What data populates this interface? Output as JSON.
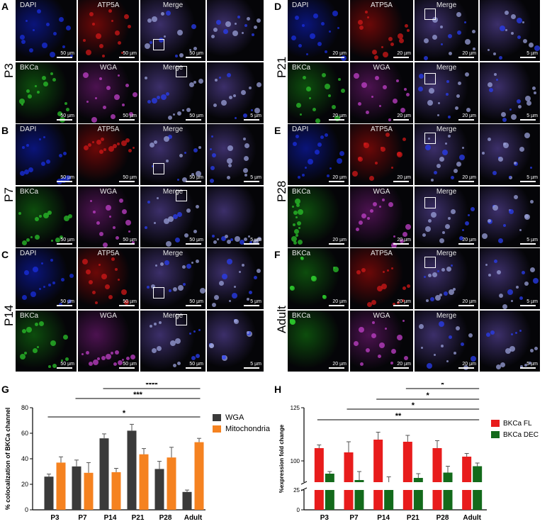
{
  "micro": {
    "channels_top": [
      "DAPI",
      "ATP5A",
      "Merge"
    ],
    "channels_top_adult": [
      "BKCa",
      "ATP5A",
      "Merge"
    ],
    "channels_bottom": [
      "BKCa",
      "WGA",
      "Merge"
    ],
    "scale_50": "50 µm",
    "scale_20": "20 µm",
    "scale_5": "5 µm",
    "panels_left": [
      {
        "letter": "A",
        "stage": "P3"
      },
      {
        "letter": "B",
        "stage": "P7"
      },
      {
        "letter": "C",
        "stage": "P14"
      }
    ],
    "panels_right": [
      {
        "letter": "D",
        "stage": "P21"
      },
      {
        "letter": "E",
        "stage": "P28"
      },
      {
        "letter": "F",
        "stage": "Adult"
      }
    ]
  },
  "chart_data": [
    {
      "type": "bar",
      "panel": "G",
      "categories": [
        "P3",
        "P7",
        "P14",
        "P21",
        "P28",
        "Adult"
      ],
      "ylabel": "% colocalization of BKCa channel",
      "ylim": [
        0,
        80
      ],
      "yticks": [
        "0",
        "20",
        "40",
        "60",
        "80"
      ],
      "series": [
        {
          "name": "WGA",
          "color": "#3a3a3a",
          "values": [
            26,
            34,
            56,
            62,
            32,
            14
          ],
          "errors": [
            2,
            5,
            3.5,
            5,
            6,
            1.5
          ]
        },
        {
          "name": "Mitochondria",
          "color": "#f58220",
          "values": [
            37,
            29,
            29.5,
            43.5,
            41,
            53
          ],
          "errors": [
            4.5,
            8,
            3,
            4.5,
            8,
            3
          ]
        }
      ],
      "significance": [
        {
          "label": "****",
          "from": "P14",
          "to": "Adult"
        },
        {
          "label": "***",
          "from": "P7",
          "to": "Adult"
        },
        {
          "label": "*",
          "from": "P3",
          "to": "Adult"
        }
      ],
      "legend": "right"
    },
    {
      "type": "bar",
      "panel": "H",
      "categories": [
        "P3",
        "P7",
        "P14",
        "P21",
        "P28",
        "Adult"
      ],
      "ylabel": "%expression fold change",
      "yticks": [
        "0",
        "25",
        "100",
        "125"
      ],
      "axis_break": true,
      "series": [
        {
          "name": "BKCa FL",
          "color": "#e81c1c",
          "values": [
            106,
            104,
            110,
            109,
            106,
            102
          ],
          "errors": [
            1.5,
            5,
            3.5,
            3,
            3.5,
            1.5
          ]
        },
        {
          "name": "BKCa DEC",
          "color": "#136a1b",
          "values": [
            94,
            91,
            90,
            92,
            94.5,
            97.5
          ],
          "errors": [
            1,
            4,
            2.5,
            2,
            3,
            1.5
          ]
        }
      ],
      "significance": [
        {
          "label": "*",
          "from": "P21",
          "to": "Adult"
        },
        {
          "label": "*",
          "from": "P14",
          "to": "Adult"
        },
        {
          "label": "*",
          "from": "P7",
          "to": "Adult"
        },
        {
          "label": "**",
          "from": "P3",
          "to": "Adult"
        }
      ],
      "legend": "right"
    }
  ]
}
